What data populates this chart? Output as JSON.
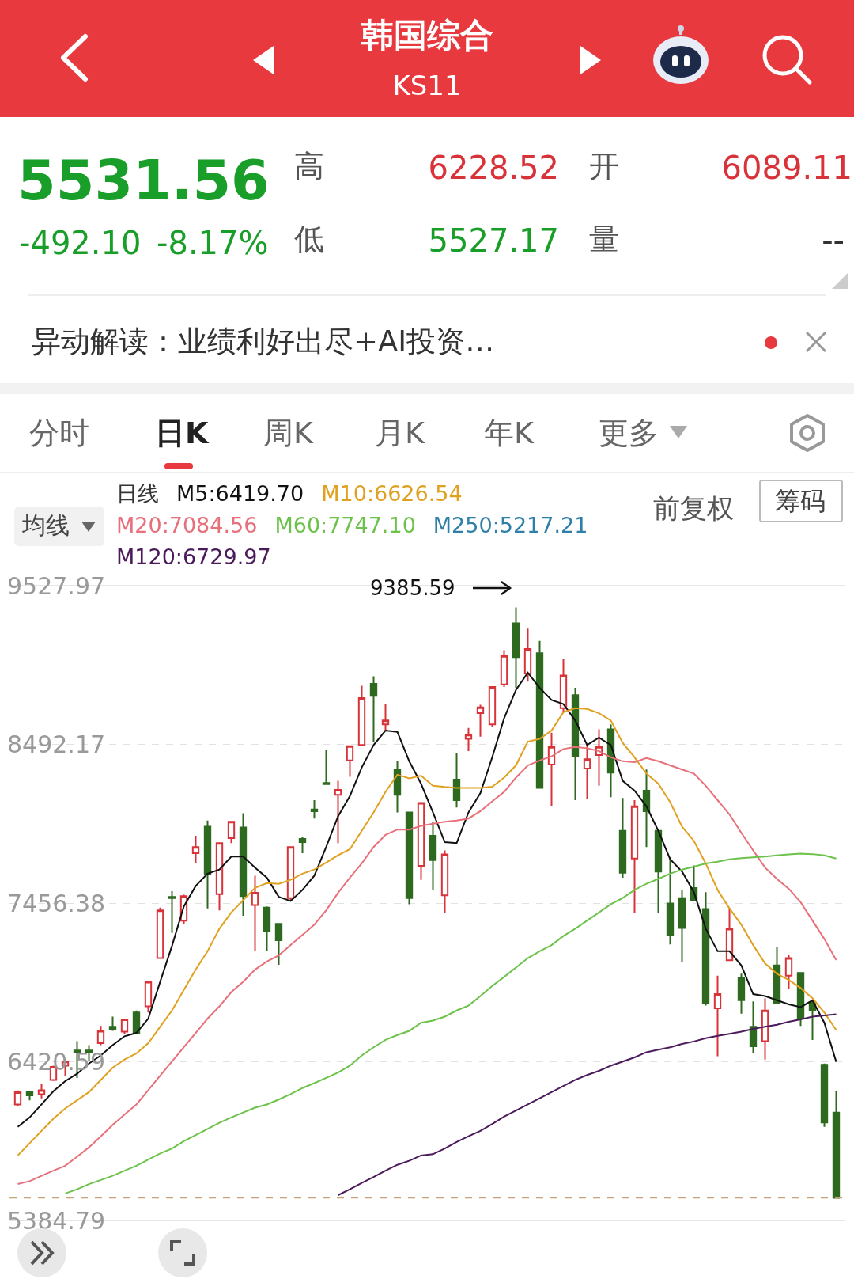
{
  "chart_data": {
    "type": "candlestick",
    "title": "韩国综合",
    "subtitle": "KS11",
    "legend_title": "日线",
    "categories": [
      null,
      null,
      null,
      null,
      null,
      null,
      null,
      null,
      null,
      null,
      null,
      null,
      null,
      null,
      null,
      null,
      null,
      null,
      null,
      null,
      null,
      null,
      null,
      null,
      null,
      null,
      null,
      null,
      null,
      null,
      null,
      null,
      null,
      null,
      null,
      null,
      null,
      null,
      null,
      null,
      null,
      null,
      null,
      null,
      null,
      null,
      null,
      null,
      null,
      null,
      null,
      null,
      null,
      null,
      null,
      null,
      null,
      null,
      null,
      null,
      null,
      null,
      null,
      null,
      null,
      null,
      null,
      null,
      null,
      null
    ],
    "ohlc": [
      [
        6142,
        6233,
        6129,
        6222
      ],
      [
        6222,
        6230,
        6169,
        6201
      ],
      [
        6209,
        6275,
        6182,
        6235
      ],
      [
        6302,
        6395,
        6295,
        6387
      ],
      [
        6395,
        6422,
        6329,
        6422
      ],
      [
        6494,
        6555,
        6315,
        6483
      ],
      [
        6494,
        6529,
        6422,
        6483
      ],
      [
        6542,
        6654,
        6529,
        6622
      ],
      [
        6649,
        6715,
        6622,
        6635
      ],
      [
        6617,
        6702,
        6601,
        6697
      ],
      [
        6742,
        6755,
        6601,
        6609
      ],
      [
        6782,
        6947,
        6742,
        6942
      ],
      [
        7097,
        7427,
        7095,
        7409
      ],
      [
        7497,
        7534,
        7262,
        7489
      ],
      [
        7342,
        7510,
        7321,
        7502
      ],
      [
        7782,
        7896,
        7720,
        7822
      ],
      [
        7955,
        7995,
        7422,
        7648
      ],
      [
        7515,
        7848,
        7409,
        7848
      ],
      [
        7880,
        7987,
        7848,
        7987
      ],
      [
        7950,
        8043,
        7374,
        7502
      ],
      [
        7443,
        7635,
        7147,
        7523
      ],
      [
        7427,
        7435,
        7147,
        7275
      ],
      [
        7321,
        7321,
        7054,
        7214
      ],
      [
        7489,
        7822,
        7475,
        7822
      ],
      [
        7875,
        7888,
        7782,
        7854
      ],
      [
        8067,
        8128,
        8008,
        8056
      ],
      [
        8240,
        8456,
        8227,
        8232
      ],
      [
        8163,
        8254,
        7848,
        8195
      ],
      [
        8387,
        8480,
        8280,
        8480
      ],
      [
        8488,
        8875,
        8488,
        8795
      ],
      [
        8888,
        8936,
        8507,
        8808
      ],
      [
        8622,
        8755,
        8582,
        8648
      ],
      [
        8328,
        8382,
        8048,
        8163
      ],
      [
        8048,
        8048,
        7449,
        7489
      ],
      [
        7699,
        8110,
        7608,
        8110
      ],
      [
        7896,
        7987,
        7542,
        7736
      ],
      [
        7507,
        7800,
        7395,
        7774
      ],
      [
        8262,
        8435,
        8080,
        8128
      ],
      [
        8528,
        8600,
        8448,
        8555
      ],
      [
        8696,
        8750,
        8542,
        8734
      ],
      [
        8622,
        8867,
        8608,
        8867
      ],
      [
        8883,
        9107,
        8867,
        9069
      ],
      [
        9283,
        9385.59,
        8861,
        9056
      ],
      [
        8955,
        9248,
        8901,
        9115
      ],
      [
        9088,
        9168,
        8208,
        8208
      ],
      [
        8360,
        8568,
        8088,
        8475
      ],
      [
        8728,
        9048,
        8702,
        8941
      ],
      [
        8814,
        8861,
        8128,
        8414
      ],
      [
        8334,
        8494,
        8136,
        8395
      ],
      [
        8422,
        8590,
        8222,
        8475
      ],
      [
        8590,
        8622,
        8147,
        8307
      ],
      [
        7928,
        8142,
        7622,
        7654
      ],
      [
        7747,
        8128,
        7395,
        8088
      ],
      [
        8190,
        8328,
        7822,
        8056
      ],
      [
        7928,
        7928,
        7395,
        7662
      ],
      [
        7454,
        7755,
        7187,
        7249
      ],
      [
        7489,
        7542,
        7070,
        7294
      ],
      [
        7555,
        7702,
        7470,
        7475
      ],
      [
        7417,
        7528,
        6787,
        6803
      ],
      [
        6769,
        6982,
        6457,
        6862
      ],
      [
        7083,
        7422,
        7078,
        7289
      ],
      [
        6969,
        6995,
        6734,
        6822
      ],
      [
        6649,
        6814,
        6475,
        6521
      ],
      [
        6555,
        6835,
        6435,
        6755
      ],
      [
        7049,
        7169,
        6795,
        6803
      ],
      [
        6982,
        7115,
        6894,
        7097
      ],
      [
        7001,
        7001,
        6654,
        6707
      ],
      [
        6809,
        6822,
        6563,
        6755
      ],
      [
        6401,
        6409,
        5996,
        6023.66
      ],
      [
        6089.11,
        6228.52,
        5527.17,
        5531.56
      ]
    ],
    "series": [
      {
        "name": "M5:6419.70",
        "type": "line",
        "color": "#111111",
        "values": [
          5996,
          6057,
          6142,
          6228,
          6294,
          6342,
          6409,
          6462,
          6529,
          6587,
          6609,
          6702,
          6942,
          7177,
          7435,
          7568,
          7648,
          7675,
          7760,
          7760,
          7688,
          7622,
          7497,
          7470,
          7542,
          7635,
          7822,
          8022,
          8155,
          8342,
          8488,
          8582,
          8574,
          8382,
          8235,
          8048,
          7854,
          7848,
          8048,
          8174,
          8408,
          8662,
          8848,
          8960,
          8861,
          8782,
          8755,
          8648,
          8488,
          8536,
          8488,
          8254,
          8190,
          8088,
          7928,
          7742,
          7662,
          7528,
          7289,
          7142,
          7142,
          7049,
          6862,
          6849,
          6822,
          6795,
          6777,
          6822,
          6675,
          6420
        ]
      },
      {
        "name": "M10:6626.54",
        "type": "line",
        "color": "#e0a020",
        "values": [
          5809,
          5889,
          5969,
          6049,
          6116,
          6169,
          6222,
          6302,
          6382,
          6435,
          6475,
          6542,
          6649,
          6755,
          6889,
          7022,
          7142,
          7289,
          7395,
          7475,
          7555,
          7587,
          7582,
          7608,
          7648,
          7675,
          7720,
          7768,
          7808,
          7928,
          8048,
          8182,
          8294,
          8270,
          8288,
          8222,
          8214,
          8208,
          8208,
          8208,
          8216,
          8275,
          8355,
          8510,
          8528,
          8582,
          8702,
          8728,
          8723,
          8696,
          8648,
          8502,
          8408,
          8302,
          8235,
          8115,
          7955,
          7862,
          7715,
          7542,
          7422,
          7315,
          7182,
          7062,
          6995,
          6955,
          6902,
          6835,
          6742,
          6627
        ]
      },
      {
        "name": "M20:7084.56",
        "type": "line",
        "color": "#e8707a",
        "values": [
          5622,
          5641,
          5676,
          5710,
          5742,
          5801,
          5862,
          5934,
          6009,
          6076,
          6142,
          6235,
          6329,
          6422,
          6515,
          6609,
          6702,
          6782,
          6875,
          6942,
          7022,
          7075,
          7115,
          7182,
          7249,
          7315,
          7409,
          7523,
          7622,
          7715,
          7822,
          7902,
          7936,
          7936,
          7960,
          7974,
          7987,
          7995,
          8008,
          8056,
          8120,
          8182,
          8275,
          8355,
          8387,
          8414,
          8462,
          8475,
          8467,
          8448,
          8408,
          8382,
          8376,
          8403,
          8382,
          8355,
          8328,
          8302,
          8222,
          8128,
          8035,
          7915,
          7800,
          7688,
          7614,
          7550,
          7462,
          7342,
          7222,
          7085
        ]
      },
      {
        "name": "M60:7747.10",
        "type": "line",
        "color": "#6cc24a",
        "values": [
          null,
          null,
          null,
          null,
          5561,
          5588,
          5622,
          5649,
          5676,
          5710,
          5742,
          5782,
          5822,
          5854,
          5902,
          5942,
          5982,
          6022,
          6057,
          6089,
          6121,
          6142,
          6174,
          6209,
          6249,
          6281,
          6315,
          6350,
          6395,
          6462,
          6515,
          6563,
          6595,
          6622,
          6675,
          6689,
          6715,
          6755,
          6787,
          6849,
          6915,
          6974,
          7035,
          7097,
          7142,
          7182,
          7241,
          7289,
          7342,
          7395,
          7449,
          7489,
          7542,
          7582,
          7614,
          7648,
          7675,
          7694,
          7715,
          7726,
          7742,
          7750,
          7755,
          7760,
          7768,
          7774,
          7779,
          7776,
          7768,
          7747
        ]
      },
      {
        "name": "M250:5217.21",
        "type": "line",
        "color": "#2f7fa8",
        "values": [
          null,
          null,
          null,
          null,
          null,
          null,
          null,
          null,
          null,
          null,
          null,
          null,
          null,
          null,
          null,
          null,
          null,
          null,
          null,
          null,
          null,
          null,
          null,
          null,
          null,
          null,
          null,
          null,
          null,
          null,
          null,
          null,
          null,
          null,
          null,
          null,
          null,
          null,
          null,
          null,
          null,
          null,
          null,
          null,
          null,
          null,
          null,
          null,
          null,
          null,
          null,
          null,
          null,
          null,
          null,
          null,
          null,
          null,
          null,
          null,
          null,
          null,
          null,
          null,
          null,
          null,
          null,
          null,
          null,
          null
        ]
      },
      {
        "name": "M120:6729.97",
        "type": "line",
        "color": "#4a1a5a",
        "values": [
          null,
          null,
          null,
          null,
          null,
          null,
          null,
          null,
          null,
          null,
          null,
          null,
          null,
          null,
          null,
          null,
          null,
          null,
          null,
          null,
          null,
          null,
          null,
          null,
          null,
          null,
          null,
          5550,
          5588,
          5630,
          5668,
          5710,
          5748,
          5774,
          5809,
          5817,
          5854,
          5897,
          5934,
          5969,
          6014,
          6062,
          6102,
          6142,
          6182,
          6222,
          6262,
          6302,
          6334,
          6361,
          6395,
          6422,
          6449,
          6483,
          6499,
          6515,
          6537,
          6553,
          6574,
          6590,
          6603,
          6617,
          6635,
          6649,
          6662,
          6681,
          6697,
          6715,
          6723,
          6730
        ]
      }
    ],
    "ylim": [
      5384.79,
      9527.97
    ],
    "yticks": [
      5384.79,
      6420.59,
      7456.38,
      8492.17,
      9527.97
    ],
    "grid": "y",
    "legend": "top",
    "tick_labels": "y",
    "ref_lines": [
      {
        "axis": "y",
        "value": 5531.56,
        "color": "#c8a27a",
        "line_style": "dashed"
      }
    ],
    "annotations": [
      "5531.56",
      "-492.10",
      "-8.17%",
      "高",
      "6228.52",
      "开",
      "6089.11",
      "低",
      "5527.17",
      "量",
      "--",
      "异动解读：业绩利好出尽+AI投资…",
      "分时",
      "日K",
      "周K",
      "月K",
      "年K",
      "更多",
      "均线",
      "前复权",
      "筹码",
      "9385.59"
    ]
  }
}
